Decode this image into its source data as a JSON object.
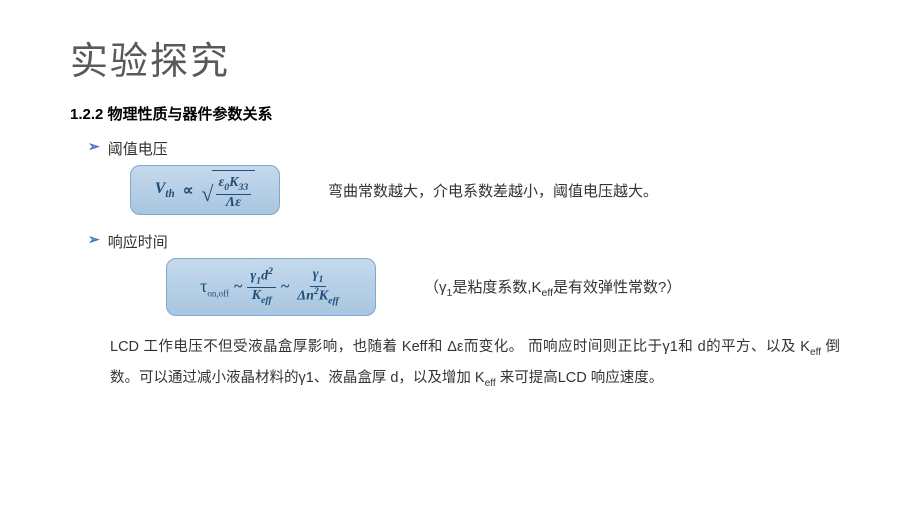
{
  "title": "实验探究",
  "section_heading": "1.2.2 物理性质与器件参数关系",
  "bullet1_label": "阈值电压",
  "bullet2_label": "响应时间",
  "formula1": {
    "lhs": "V",
    "lhs_sub": "th",
    "prop": "∝",
    "num_eps": "ε",
    "num_eps_sub": "0",
    "num_k": "K",
    "num_k_sub": "33",
    "den_delta": "Λ",
    "den_eps": "ε"
  },
  "explain1": "弯曲常数越大，介电系数差越小，阈值电压越大。",
  "formula2": {
    "tau": "τ",
    "tau_sub": "on,off",
    "tilde": "~",
    "f1_num_gamma": "γ",
    "f1_num_gamma_sub": "1",
    "f1_num_d": "d",
    "f1_num_d_sup": "2",
    "f1_den_k": "K",
    "f1_den_k_sub": "eff",
    "f2_num_gamma": "γ",
    "f2_num_gamma_sub": "1",
    "f2_den_delta": "Δ",
    "f2_den_n": "n",
    "f2_den_n_sup": "2",
    "f2_den_k": "K",
    "f2_den_k_sub": "eff"
  },
  "explain2_pre": "（γ",
  "explain2_sub1": "1",
  "explain2_mid": "是粘度系数,K",
  "explain2_sub2": "eff",
  "explain2_post": "是有效弹性常数?）",
  "body_p1_a": "LCD 工作电压不但受液晶盒厚影响，也随着 Keff和 Δε而变化。 而响应时间则正比于γ1和 d的平方、以及 K",
  "body_p1_sub": "eff",
  "body_p1_b": " 倒数。可以通过减小液晶材料的γ1、液晶盒厚 d，以及增加 K",
  "body_p1_sub2": "eff",
  "body_p1_c": " 来可提高LCD 响应速度。",
  "colors": {
    "title": "#595959",
    "accent": "#4472c4",
    "formula_text": "#1f4e79",
    "box_bg_top": "#c5d9ed",
    "box_bg_bottom": "#a8c6e0",
    "box_border": "#7fa8cc"
  }
}
